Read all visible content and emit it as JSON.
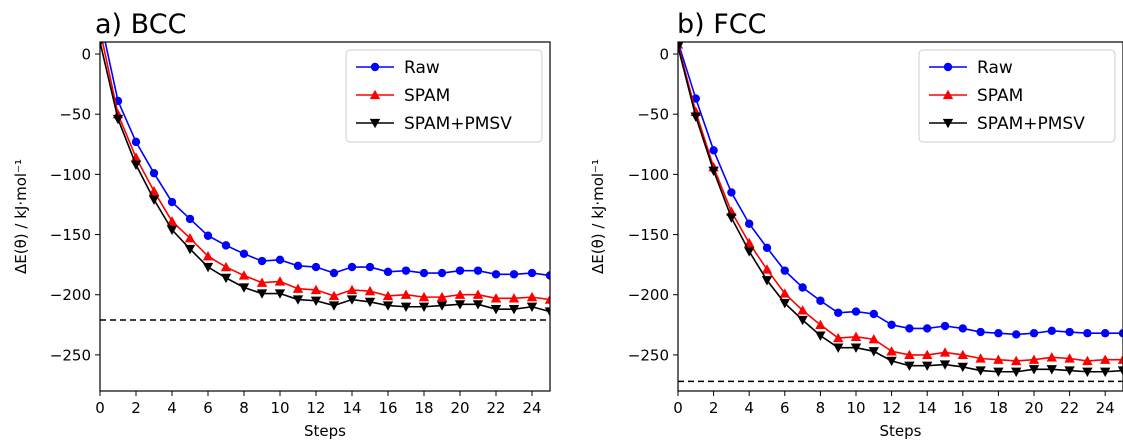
{
  "chart_data": [
    {
      "type": "line",
      "title": "a) BCC",
      "xlabel": "Steps",
      "ylabel": "ΔE(θ) / kJ·mol⁻¹",
      "xlim": [
        0,
        25
      ],
      "ylim": [
        -280,
        10
      ],
      "xticks": [
        0,
        2,
        4,
        6,
        8,
        10,
        12,
        14,
        16,
        18,
        20,
        22,
        24
      ],
      "yticks": [
        0,
        -50,
        -100,
        -150,
        -200,
        -250
      ],
      "legend_position": "top-right",
      "reference_line": -221,
      "x": [
        0,
        1,
        2,
        3,
        4,
        5,
        6,
        7,
        8,
        9,
        10,
        11,
        12,
        13,
        14,
        15,
        16,
        17,
        18,
        19,
        20,
        21,
        22,
        23,
        24,
        25
      ],
      "series": [
        {
          "name": "Raw",
          "color": "#0000ff",
          "marker": "circle",
          "values": [
            30,
            -39,
            -73,
            -99,
            -123,
            -137,
            -151,
            -159,
            -166,
            -172,
            -171,
            -176,
            -177,
            -182,
            -177,
            -177,
            -181,
            -180,
            -182,
            -182,
            -180,
            -180,
            -183,
            -183,
            -182,
            -184
          ]
        },
        {
          "name": "SPAM",
          "color": "#ff0000",
          "marker": "triangle-up",
          "values": [
            20,
            -50,
            -86,
            -114,
            -139,
            -153,
            -168,
            -177,
            -184,
            -190,
            -189,
            -195,
            -196,
            -201,
            -196,
            -197,
            -201,
            -200,
            -202,
            -202,
            -200,
            -200,
            -203,
            -203,
            -202,
            -204
          ]
        },
        {
          "name": "SPAM+PMSV",
          "color": "#000000",
          "marker": "triangle-down",
          "values": [
            10,
            -54,
            -92,
            -121,
            -146,
            -162,
            -177,
            -186,
            -194,
            -199,
            -199,
            -204,
            -205,
            -209,
            -204,
            -206,
            -209,
            -210,
            -210,
            -209,
            -208,
            -208,
            -212,
            -212,
            -210,
            -214
          ]
        }
      ]
    },
    {
      "type": "line",
      "title": "b) FCC",
      "xlabel": "Steps",
      "ylabel": "ΔE(θ) / kJ·mol⁻¹",
      "xlim": [
        0,
        25
      ],
      "ylim": [
        -280,
        10
      ],
      "xticks": [
        0,
        2,
        4,
        6,
        8,
        10,
        12,
        14,
        16,
        18,
        20,
        22,
        24
      ],
      "yticks": [
        0,
        -50,
        -100,
        -150,
        -200,
        -250
      ],
      "legend_position": "top-right",
      "reference_line": -272,
      "x": [
        0,
        1,
        2,
        3,
        4,
        5,
        6,
        7,
        8,
        9,
        10,
        11,
        12,
        13,
        14,
        15,
        16,
        17,
        18,
        19,
        20,
        21,
        22,
        23,
        24,
        25
      ],
      "series": [
        {
          "name": "Raw",
          "color": "#0000ff",
          "marker": "circle",
          "values": [
            10,
            -37,
            -80,
            -115,
            -141,
            -161,
            -180,
            -194,
            -205,
            -215,
            -214,
            -216,
            -225,
            -228,
            -228,
            -226,
            -228,
            -231,
            -232,
            -233,
            -232,
            -230,
            -231,
            -232,
            -232,
            -232
          ]
        },
        {
          "name": "SPAM",
          "color": "#ff0000",
          "marker": "triangle-up",
          "values": [
            8,
            -48,
            -94,
            -131,
            -157,
            -179,
            -199,
            -213,
            -225,
            -236,
            -235,
            -237,
            -247,
            -250,
            -250,
            -248,
            -250,
            -253,
            -254,
            -255,
            -254,
            -252,
            -253,
            -255,
            -254,
            -254
          ]
        },
        {
          "name": "SPAM+PMSV",
          "color": "#000000",
          "marker": "triangle-down",
          "values": [
            6,
            -52,
            -97,
            -136,
            -164,
            -188,
            -207,
            -221,
            -234,
            -244,
            -244,
            -247,
            -255,
            -259,
            -259,
            -258,
            -260,
            -263,
            -264,
            -264,
            -262,
            -262,
            -263,
            -264,
            -264,
            -263
          ]
        }
      ]
    }
  ]
}
